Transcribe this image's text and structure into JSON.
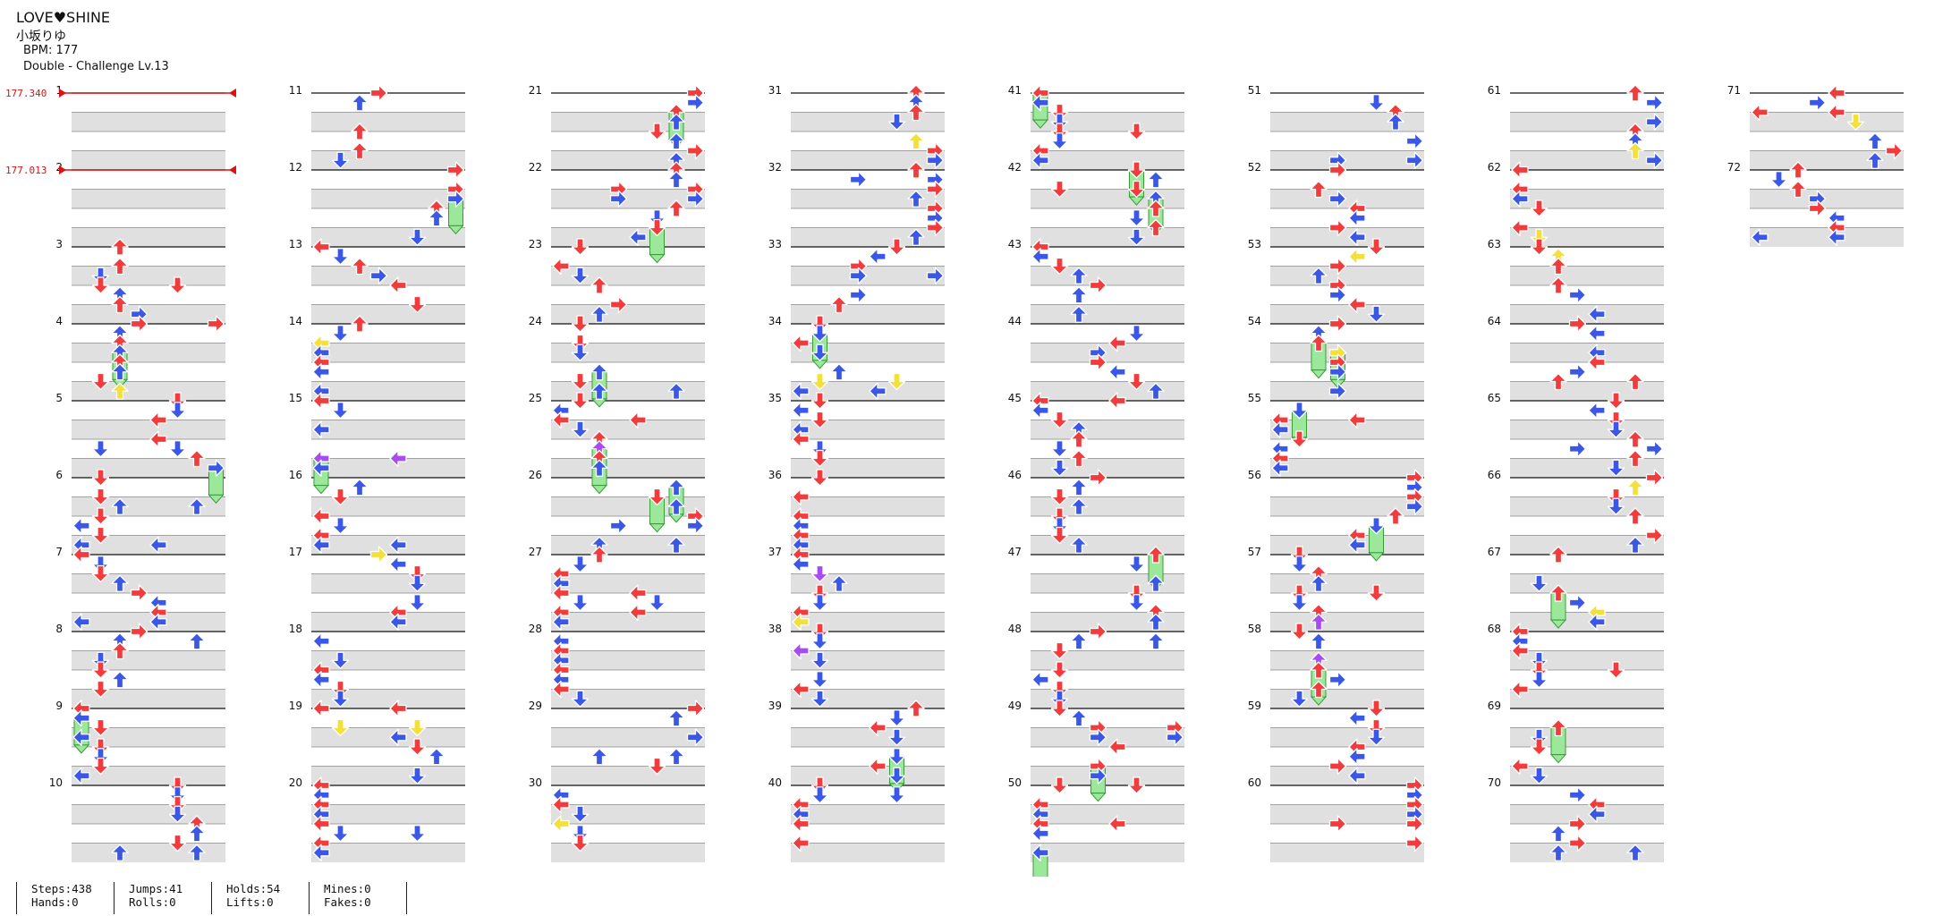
{
  "song": {
    "title": "LOVE♥SHINE",
    "artist": "小坂りゆ",
    "bpm_label": "BPM: 177",
    "difficulty": "Double - Challenge Lv.13"
  },
  "bpm_changes": [
    {
      "measure": 1,
      "label": "177.340"
    },
    {
      "measure": 2,
      "label": "177.013"
    }
  ],
  "measure_labels": [
    "1",
    "2",
    "3",
    "4",
    "5",
    "6",
    "7",
    "8",
    "9",
    "10",
    "11",
    "12",
    "13",
    "14",
    "15",
    "16",
    "17",
    "18",
    "19",
    "20",
    "21",
    "22",
    "23",
    "24",
    "25",
    "26",
    "27",
    "28",
    "29",
    "30",
    "31",
    "32",
    "33",
    "34",
    "35",
    "36",
    "37",
    "38",
    "39",
    "40",
    "41",
    "42",
    "43",
    "44",
    "45",
    "46",
    "47",
    "48",
    "49",
    "50",
    "51",
    "52",
    "53",
    "54",
    "55",
    "56",
    "57",
    "58",
    "59",
    "60",
    "61",
    "62",
    "63",
    "64",
    "65",
    "66",
    "67",
    "68",
    "69",
    "70",
    "71",
    "72"
  ],
  "colors": {
    "red_note": "#f03c3c",
    "blue_note": "#3a57e6",
    "yellow_note": "#f3e03a",
    "purple_note": "#a64cf0",
    "hold_green": "#9be89b",
    "row_gray": "#e0e0e0",
    "bpm_marker": "#dd1111"
  },
  "stats": [
    {
      "a": "Steps:438",
      "b": "Hands:0"
    },
    {
      "a": "Jumps:41",
      "b": "Rolls:0"
    },
    {
      "a": "Holds:54",
      "b": "Lifts:0"
    },
    {
      "a": "Mines:0",
      "b": "Fakes:0"
    }
  ]
}
